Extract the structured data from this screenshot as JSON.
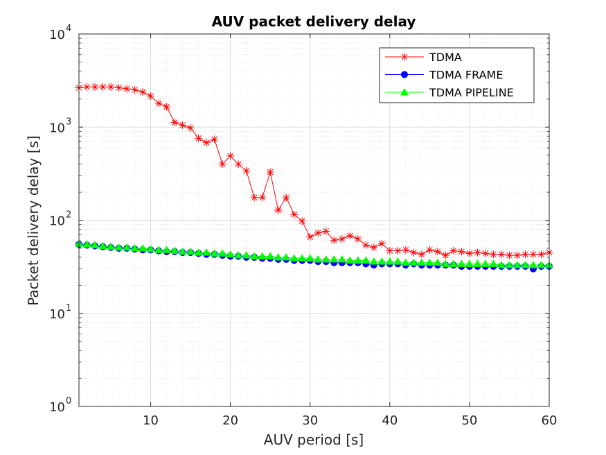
{
  "chart_data": {
    "type": "line",
    "title": "AUV packet delivery delay",
    "xlabel": "AUV period [s]",
    "ylabel": "Packet delivery delay [s]",
    "xlim": [
      1,
      60
    ],
    "ylim": [
      1,
      10000
    ],
    "yscale": "log",
    "grid": true,
    "minor_grid": true,
    "legend_position": "top-right",
    "xticks": [
      10,
      20,
      30,
      40,
      50,
      60
    ],
    "xtick_labels": [
      "10",
      "20",
      "30",
      "40",
      "50",
      "60"
    ],
    "ytick_base": "10",
    "ytick_exponents": [
      "0",
      "1",
      "2",
      "3",
      "4"
    ],
    "x": [
      1,
      2,
      3,
      4,
      5,
      6,
      7,
      8,
      9,
      10,
      11,
      12,
      13,
      14,
      15,
      16,
      17,
      18,
      19,
      20,
      21,
      22,
      23,
      24,
      25,
      26,
      27,
      28,
      29,
      30,
      31,
      32,
      33,
      34,
      35,
      36,
      37,
      38,
      39,
      40,
      41,
      42,
      43,
      44,
      45,
      46,
      47,
      48,
      49,
      50,
      51,
      52,
      53,
      54,
      55,
      56,
      57,
      58,
      59,
      60
    ],
    "series": [
      {
        "name": "TDMA",
        "color": "#ff0000",
        "marker": "asterisk",
        "values": [
          2650,
          2700,
          2700,
          2700,
          2700,
          2650,
          2580,
          2520,
          2380,
          2150,
          1800,
          1650,
          1120,
          1050,
          980,
          760,
          680,
          740,
          400,
          490,
          400,
          340,
          175,
          175,
          330,
          128,
          175,
          115,
          98,
          66,
          73,
          76,
          61,
          63,
          68,
          63,
          54,
          51,
          56,
          47,
          47,
          48,
          45,
          43,
          48,
          46,
          42,
          47,
          46,
          44,
          45,
          44,
          43,
          43,
          42,
          42,
          43,
          43,
          43,
          45
        ]
      },
      {
        "name": "TDMA FRAME",
        "color": "#0000ff",
        "marker": "circle",
        "values": [
          55,
          54,
          53,
          52,
          51,
          50,
          50,
          49,
          48,
          48,
          47,
          46,
          46,
          45,
          45,
          44,
          43,
          43,
          42,
          41,
          41,
          40,
          40,
          39,
          39,
          38,
          38,
          37,
          37,
          37,
          36,
          36,
          35,
          35,
          35,
          35,
          34,
          33,
          34,
          34,
          34,
          33,
          34,
          33,
          33,
          33,
          33,
          33,
          32,
          32,
          32,
          32,
          32,
          32,
          32,
          32,
          32,
          30,
          32,
          32
        ]
      },
      {
        "name": "TDMA PIPELINE",
        "color": "#00ff00",
        "marker": "triangle",
        "values": [
          56,
          55,
          54,
          53,
          52,
          51,
          51,
          50,
          50,
          49,
          48,
          48,
          47,
          46,
          46,
          45,
          45,
          44,
          44,
          43,
          42,
          42,
          41,
          41,
          41,
          40,
          40,
          39,
          39,
          39,
          38,
          38,
          38,
          38,
          37,
          37,
          37,
          36,
          36,
          36,
          36,
          35,
          35,
          35,
          35,
          35,
          34,
          34,
          34,
          34,
          34,
          34,
          34,
          33,
          33,
          33,
          33,
          33,
          33,
          33
        ]
      }
    ]
  }
}
